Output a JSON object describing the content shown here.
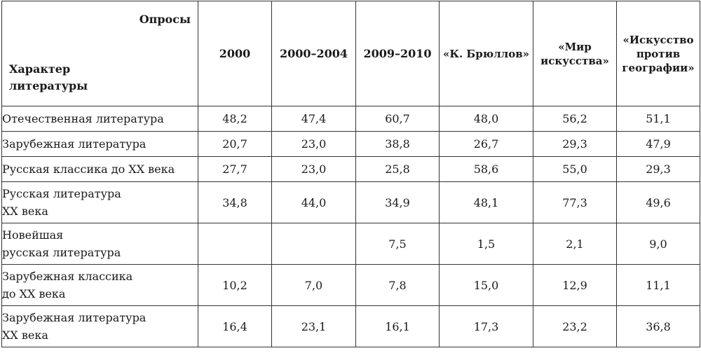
{
  "header": {
    "corner_top": "Опросы",
    "corner_bottom_line1": "Характер",
    "corner_bottom_line2": "литературы",
    "columns": [
      {
        "lines": [
          "2000"
        ]
      },
      {
        "lines": [
          "2000–2004"
        ]
      },
      {
        "lines": [
          "2009–2010"
        ]
      },
      {
        "lines": [
          "«К. Брюллов»"
        ]
      },
      {
        "lines": [
          "«Мир",
          "искусства»"
        ]
      },
      {
        "lines": [
          "«Искусство",
          "против",
          "географии»"
        ]
      }
    ]
  },
  "rows": [
    {
      "label": [
        "Отечественная литература"
      ],
      "values": [
        "48,2",
        "47,4",
        "60,7",
        "48,0",
        "56,2",
        "51,1"
      ]
    },
    {
      "label": [
        "Зарубежная литература"
      ],
      "values": [
        "20,7",
        "23,0",
        "38,8",
        "26,7",
        "29,3",
        "47,9"
      ]
    },
    {
      "label": [
        "Русская классика до XX века"
      ],
      "values": [
        "27,7",
        "23,0",
        "25,8",
        "58,6",
        "55,0",
        "29,3"
      ]
    },
    {
      "label": [
        "Русская литература",
        "XX века"
      ],
      "values": [
        "34,8",
        "44,0",
        "34,9",
        "48,1",
        "77,3",
        "49,6"
      ]
    },
    {
      "label": [
        "Новейшая",
        "русская литература"
      ],
      "values": [
        "",
        "",
        "7,5",
        "1,5",
        "2,1",
        "9,0"
      ]
    },
    {
      "label": [
        "Зарубежная классика",
        "до XX века"
      ],
      "values": [
        "10,2",
        "7,0",
        "7,8",
        "15,0",
        "12,9",
        "11,1"
      ]
    },
    {
      "label": [
        "Зарубежная литература",
        "XX века"
      ],
      "values": [
        "16,4",
        "23,1",
        "16,1",
        "17,3",
        "23,2",
        "36,8"
      ]
    }
  ]
}
